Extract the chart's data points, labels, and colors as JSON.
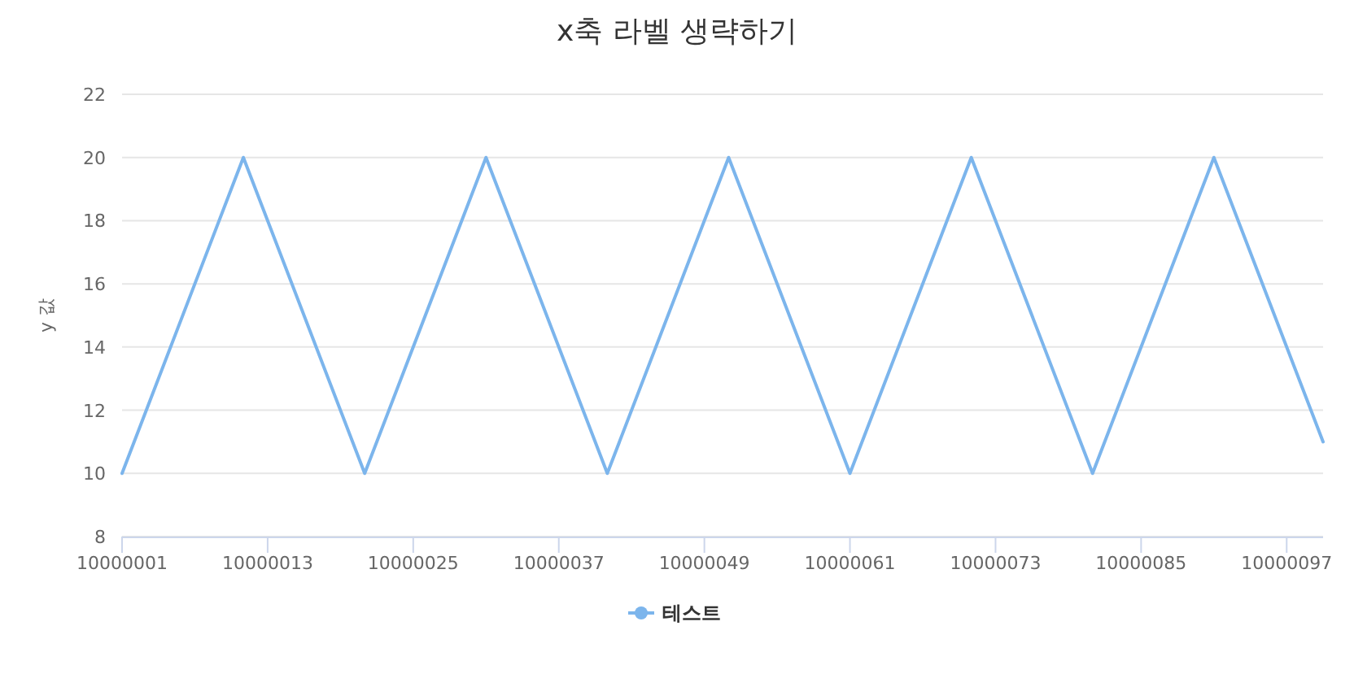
{
  "chart_data": {
    "type": "line",
    "title": "x축 라벨 생략하기",
    "ylabel": "y 값",
    "x": [
      10000001,
      10000011,
      10000021,
      10000031,
      10000041,
      10000051,
      10000061,
      10000071,
      10000081,
      10000091,
      10000100
    ],
    "series": [
      {
        "name": "테스트",
        "color": "#7cb5ec",
        "values": [
          10,
          20,
          10,
          20,
          10,
          20,
          10,
          20,
          10,
          20,
          11
        ]
      }
    ],
    "xlim": [
      10000001,
      10000100
    ],
    "xticks": [
      10000001,
      10000013,
      10000025,
      10000037,
      10000049,
      10000061,
      10000073,
      10000085,
      10000097
    ],
    "ylim": [
      8,
      22
    ],
    "yticks": [
      8,
      10,
      12,
      14,
      16,
      18,
      20,
      22
    ],
    "grid": "y",
    "legend": "bottom",
    "marker": "none",
    "line_style": "solid"
  }
}
